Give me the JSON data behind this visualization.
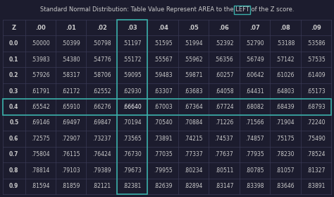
{
  "title_prefix": "Standard Normal Distribution: Table Value Represent AREA to the ",
  "title_highlight": "LEFT",
  "title_suffix": " of the Z score.",
  "background_color": "#1c1c2e",
  "text_color": "#cccccc",
  "highlight_col": 4,
  "highlight_row": 4,
  "border_color": "#3aafa9",
  "line_color": "#3a3a55",
  "col_headers": [
    "Z",
    ".00",
    ".01",
    ".02",
    ".03",
    ".04",
    ".05",
    ".06",
    ".07",
    ".08",
    ".09"
  ],
  "rows": [
    [
      "0.0",
      ".50000",
      ".50399",
      ".50798",
      ".51197",
      ".51595",
      ".51994",
      ".52392",
      ".52790",
      ".53188",
      ".53586"
    ],
    [
      "0.1",
      ".53983",
      ".54380",
      ".54776",
      ".55172",
      ".55567",
      ".55962",
      ".56356",
      ".56749",
      ".57142",
      ".57535"
    ],
    [
      "0.2",
      ".57926",
      ".58317",
      ".58706",
      ".59095",
      ".59483",
      ".59871",
      ".60257",
      ".60642",
      ".61026",
      ".61409"
    ],
    [
      "0.3",
      ".61791",
      ".62172",
      ".62552",
      ".62930",
      ".63307",
      ".63683",
      ".64058",
      ".64431",
      ".64803",
      ".65173"
    ],
    [
      "0.4",
      ".65542",
      ".65910",
      ".66276",
      ".66640",
      ".67003",
      ".67364",
      ".67724",
      ".68082",
      ".68439",
      ".68793"
    ],
    [
      "0.5",
      ".69146",
      ".69497",
      ".69847",
      ".70194",
      ".70540",
      ".70884",
      ".71226",
      ".71566",
      ".71904",
      ".72240"
    ],
    [
      "0.6",
      ".72575",
      ".72907",
      ".73237",
      ".73565",
      ".73891",
      ".74215",
      ".74537",
      ".74857",
      ".75175",
      ".75490"
    ],
    [
      "0.7",
      ".75804",
      ".76115",
      ".76424",
      ".76730",
      ".77035",
      ".77337",
      ".77637",
      ".77935",
      ".78230",
      ".78524"
    ],
    [
      "0.8",
      ".78814",
      ".79103",
      ".79389",
      ".79673",
      ".79955",
      ".80234",
      ".80511",
      ".80785",
      ".81057",
      ".81327"
    ],
    [
      "0.9",
      ".81594",
      ".81859",
      ".82121",
      ".82381",
      ".82639",
      ".82894",
      ".83147",
      ".83398",
      ".83646",
      ".83891"
    ]
  ]
}
